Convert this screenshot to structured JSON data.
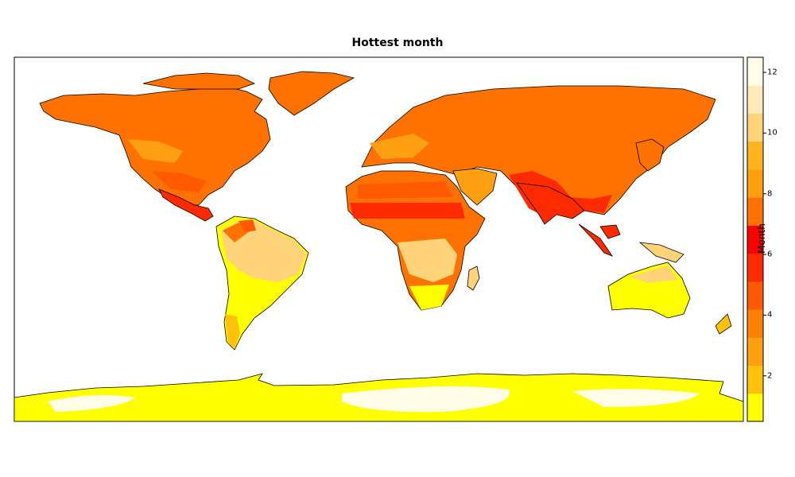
{
  "map": {
    "title": "Hottest month",
    "legend": {
      "label": "Month",
      "ticks": [
        2,
        4,
        6,
        8,
        10,
        12
      ],
      "range": [
        0.5,
        12.5
      ],
      "colors": [
        "#ffff00",
        "#ffc20a",
        "#ff9f12",
        "#ff7f00",
        "#ff5a00",
        "#ff2a00",
        "#ff0000",
        "#ff7200",
        "#ff9f12",
        "#ffb31f",
        "#ffd37a",
        "#ffe9b8",
        "#fffde8"
      ]
    },
    "colors": {
      "ocean": "#ffffff",
      "northern_hemisphere_land": "#ff7200",
      "tropics_hot": "#ff2a00",
      "southern_hemisphere_land": "#ffff00",
      "southern_autumn": "#ffd37a",
      "antarctica_high": "#fffde8",
      "coastline": "#000000"
    }
  }
}
